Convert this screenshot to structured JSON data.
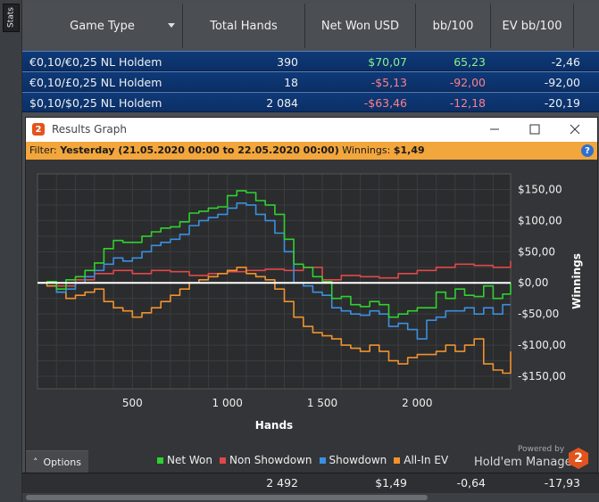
{
  "sidebar": {
    "tab_label": "Stats"
  },
  "table": {
    "columns": [
      "Game Type",
      "Total Hands",
      "Net Won USD",
      "bb/100",
      "EV bb/100"
    ],
    "rows": [
      {
        "game": "€0,10/€0,25 NL Holdem",
        "hands": "390",
        "net": "$70,07",
        "bb": "65,23",
        "ev": "-2,46"
      },
      {
        "game": "€0,10/£0,25 NL Holdem",
        "hands": "18",
        "net": "-$5,13",
        "bb": "-92,00",
        "ev": "-92,00"
      },
      {
        "game": "$0,10/$0,25 NL Holdem",
        "hands": "2 084",
        "net": "-$63,46",
        "bb": "-12,18",
        "ev": "-20,19"
      }
    ],
    "totals": {
      "hands": "2 492",
      "net": "$1,49",
      "bb": "-0,64",
      "ev": "-17,93"
    }
  },
  "graph_window": {
    "title": "Results Graph",
    "app_logo": "2",
    "filter_prefix": "Filter:",
    "filter_value": "Yesterday (21.05.2020 00:00 to 22.05.2020 00:00)",
    "winnings_label": "Winnings:",
    "winnings_value": "$1,49",
    "help": "?",
    "options_label": "Options",
    "powered_by": "Powered by",
    "brand": "Hold'em Manager",
    "brand_logo": "2"
  },
  "colors": {
    "net_won": "#2fd12f",
    "non_showdown": "#e04848",
    "showdown": "#3b8fe0",
    "allin_ev": "#f0922e",
    "filter_bar": "#f2a63c",
    "row_blue": "#0e3a78"
  },
  "chart_data": {
    "type": "line",
    "xlabel": "Hands",
    "ylabel": "Winnings",
    "xlim": [
      0,
      2492
    ],
    "ylim": [
      -170,
      175
    ],
    "x_ticks": [
      500,
      1000,
      1500,
      2000
    ],
    "x_tick_labels": [
      "500",
      "1 000",
      "1 500",
      "2 000"
    ],
    "y_ticks": [
      150,
      100,
      50,
      0,
      -50,
      -100,
      -150
    ],
    "y_tick_labels": [
      "$150,00",
      "$100,00",
      "$50,00",
      "$0,00",
      "-$50,00",
      "-$100,00",
      "-$150,00"
    ],
    "legend_position": "bottom",
    "series": [
      {
        "name": "Net Won",
        "color": "#2fd12f",
        "x": [
          0,
          50,
          100,
          150,
          200,
          250,
          300,
          350,
          400,
          450,
          500,
          550,
          600,
          650,
          700,
          750,
          800,
          850,
          900,
          950,
          1000,
          1050,
          1100,
          1150,
          1200,
          1250,
          1300,
          1350,
          1400,
          1450,
          1500,
          1550,
          1600,
          1650,
          1700,
          1750,
          1800,
          1850,
          1900,
          1950,
          2000,
          2050,
          2100,
          2150,
          2200,
          2250,
          2300,
          2350,
          2400,
          2450,
          2492
        ],
        "values": [
          0,
          2,
          -10,
          5,
          10,
          20,
          32,
          55,
          68,
          65,
          65,
          75,
          82,
          88,
          90,
          98,
          112,
          115,
          120,
          122,
          140,
          148,
          145,
          132,
          125,
          110,
          70,
          30,
          25,
          10,
          2,
          -25,
          -22,
          -35,
          -38,
          -30,
          -35,
          -55,
          -50,
          -45,
          -40,
          -40,
          -15,
          -25,
          -10,
          -20,
          -22,
          -5,
          -25,
          -18,
          0
        ]
      },
      {
        "name": "Non Showdown",
        "color": "#e04848",
        "x": [
          0,
          100,
          200,
          300,
          400,
          500,
          600,
          700,
          800,
          900,
          1000,
          1100,
          1200,
          1300,
          1400,
          1500,
          1600,
          1700,
          1800,
          1900,
          2000,
          2100,
          2200,
          2300,
          2400,
          2492
        ],
        "values": [
          0,
          -5,
          5,
          15,
          20,
          15,
          20,
          18,
          12,
          15,
          18,
          20,
          22,
          20,
          25,
          5,
          12,
          10,
          8,
          15,
          20,
          25,
          30,
          28,
          25,
          35
        ]
      },
      {
        "name": "Showdown",
        "color": "#3b8fe0",
        "x": [
          0,
          50,
          100,
          150,
          200,
          250,
          300,
          350,
          400,
          450,
          500,
          550,
          600,
          650,
          700,
          750,
          800,
          850,
          900,
          950,
          1000,
          1050,
          1100,
          1150,
          1200,
          1250,
          1300,
          1350,
          1400,
          1450,
          1500,
          1550,
          1600,
          1650,
          1700,
          1750,
          1800,
          1850,
          1900,
          1950,
          2000,
          2050,
          2100,
          2150,
          2200,
          2250,
          2300,
          2350,
          2400,
          2450,
          2492
        ],
        "values": [
          0,
          0,
          -15,
          -10,
          0,
          10,
          20,
          30,
          40,
          35,
          40,
          50,
          60,
          65,
          70,
          78,
          92,
          100,
          105,
          110,
          120,
          128,
          125,
          110,
          100,
          80,
          50,
          0,
          -5,
          -15,
          -20,
          -40,
          -45,
          -50,
          -52,
          -45,
          -50,
          -70,
          -65,
          -75,
          -90,
          -60,
          -55,
          -45,
          -45,
          -40,
          -50,
          -40,
          -50,
          -35,
          -35
        ]
      },
      {
        "name": "All-In EV",
        "color": "#f0922e",
        "x": [
          0,
          50,
          100,
          150,
          200,
          250,
          300,
          350,
          400,
          450,
          500,
          550,
          600,
          650,
          700,
          750,
          800,
          850,
          900,
          950,
          1000,
          1050,
          1100,
          1150,
          1200,
          1250,
          1300,
          1350,
          1400,
          1450,
          1500,
          1550,
          1600,
          1650,
          1700,
          1750,
          1800,
          1850,
          1900,
          1950,
          2000,
          2050,
          2100,
          2150,
          2200,
          2250,
          2300,
          2350,
          2400,
          2450,
          2492
        ],
        "values": [
          0,
          -5,
          -15,
          -25,
          -20,
          -15,
          -10,
          -30,
          -40,
          -45,
          -55,
          -48,
          -40,
          -30,
          -20,
          -10,
          0,
          5,
          10,
          15,
          20,
          25,
          15,
          10,
          5,
          -10,
          -30,
          -55,
          -70,
          -80,
          -85,
          -90,
          -100,
          -105,
          -110,
          -100,
          -110,
          -125,
          -130,
          -120,
          -115,
          -115,
          -110,
          -100,
          -110,
          -100,
          -90,
          -130,
          -140,
          -145,
          -110
        ]
      }
    ]
  }
}
